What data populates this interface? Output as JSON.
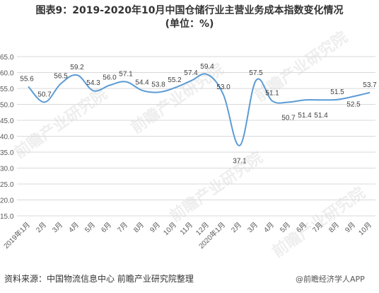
{
  "header": {
    "title_line1": "图表9：2019-2020年10月中国仓储行业主营业务成本指数变化情况",
    "title_line2": "(单位：%)"
  },
  "footer": {
    "source": "资料来源：中国物流信息中心 前瞻产业研究院整理",
    "brand": "@前瞻经济学人APP"
  },
  "watermark": {
    "text": "前瞻产业研究院"
  },
  "colors": {
    "line": "#5b9bd5",
    "grid": "#d9d9d9",
    "text": "#595959"
  },
  "chart_data": {
    "type": "line",
    "title": "图表9：2019-2020年10月中国仓储行业主营业务成本指数变化情况",
    "subtitle": "(单位：%)",
    "categories": [
      "2019年1月",
      "2月",
      "3月",
      "4月",
      "5月",
      "6月",
      "7月",
      "8月",
      "9月",
      "10月",
      "11月",
      "12月",
      "2020年1月",
      "2月",
      "3月",
      "4月",
      "5月",
      "6月",
      "7月",
      "8月",
      "9月",
      "10月"
    ],
    "series": [
      {
        "values": [
          55.6,
          50.7,
          56.5,
          59.2,
          54.3,
          56.0,
          57.1,
          54.4,
          53.8,
          55.2,
          57.4,
          59.4,
          53.0,
          37.1,
          57.5,
          51.1,
          50.7,
          51.4,
          51.4,
          51.5,
          52.5,
          53.7
        ]
      }
    ],
    "data_labels": [
      "55.6",
      "50.7",
      "56.5",
      "59.2",
      "54.3",
      "56.0",
      "57.1",
      "54.4",
      "53.8",
      "55.2",
      "57.4",
      "59.4",
      "53.0",
      "37.1",
      "57.5",
      "51.1",
      "50.7",
      "51.4",
      "51.4",
      "51.5",
      "52.5",
      "53.7"
    ],
    "y_ticks": [
      "65.0",
      "60.0",
      "55.0",
      "50.0",
      "45.0",
      "40.0",
      "35.0",
      "30.0",
      "25.0",
      "20.0",
      "15.0"
    ],
    "ylim": [
      15,
      65
    ],
    "grid": true,
    "smooth": true
  }
}
